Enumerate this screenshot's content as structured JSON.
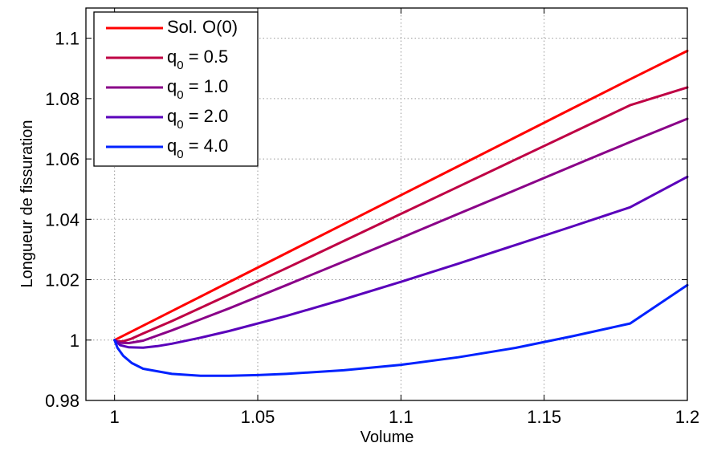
{
  "chart_data": {
    "type": "line",
    "title": "",
    "xlabel": "Volume",
    "ylabel": "Longueur de fissuration",
    "xlim": [
      0.99,
      1.2
    ],
    "ylim": [
      0.98,
      1.11
    ],
    "grid": true,
    "grid_style": "dotted",
    "legend_position": "top-left",
    "x_ticks": [
      1,
      1.05,
      1.1,
      1.15,
      1.2
    ],
    "x_tick_labels": [
      "1",
      "1.05",
      "1.1",
      "1.15",
      "1.2"
    ],
    "y_ticks": [
      0.98,
      1.0,
      1.02,
      1.04,
      1.06,
      1.08,
      1.1
    ],
    "y_tick_labels": [
      "0.98",
      "1",
      "1.02",
      "1.04",
      "1.06",
      "1.08",
      "1.1"
    ],
    "series": [
      {
        "name": "Sol. O(0)",
        "legend_main": "Sol. O(0)",
        "legend_sub": "",
        "legend_tail": "",
        "color": "#ff0000",
        "x": [
          1.0,
          1.02,
          1.04,
          1.06,
          1.08,
          1.1,
          1.12,
          1.14,
          1.16,
          1.18,
          1.2
        ],
        "y": [
          1.0,
          1.0096,
          1.0192,
          1.0288,
          1.0384,
          1.048,
          1.0576,
          1.0672,
          1.0768,
          1.0864,
          1.0958
        ]
      },
      {
        "name": "q0 = 0.5",
        "legend_main": "q",
        "legend_sub": "0",
        "legend_tail": " = 0.5",
        "color": "#bf0044",
        "x": [
          1.0,
          1.001,
          1.003,
          1.006,
          1.01,
          1.02,
          1.04,
          1.06,
          1.08,
          1.1,
          1.12,
          1.14,
          1.16,
          1.18,
          1.2
        ],
        "y": [
          1.0,
          0.9995,
          0.9996,
          1.0005,
          1.0022,
          1.0063,
          1.015,
          1.0238,
          1.0328,
          1.0418,
          1.0508,
          1.0598,
          1.0688,
          1.0778,
          1.0837
        ]
      },
      {
        "name": "q0 = 1.0",
        "legend_main": "q",
        "legend_sub": "0",
        "legend_tail": " = 1.0",
        "color": "#8a0088",
        "x": [
          1.0,
          1.002,
          1.005,
          1.01,
          1.02,
          1.04,
          1.06,
          1.08,
          1.1,
          1.12,
          1.14,
          1.16,
          1.18,
          1.2
        ],
        "y": [
          1.0,
          0.9991,
          0.999,
          0.9998,
          1.0032,
          1.0105,
          1.0182,
          1.026,
          1.0338,
          1.0418,
          1.0497,
          1.0577,
          1.0656,
          1.0733
        ]
      },
      {
        "name": "q0 = 2.0",
        "legend_main": "q",
        "legend_sub": "0",
        "legend_tail": " = 2.0",
        "color": "#5a00bb",
        "x": [
          1.0,
          1.002,
          1.005,
          1.01,
          1.015,
          1.02,
          1.03,
          1.04,
          1.06,
          1.08,
          1.1,
          1.12,
          1.14,
          1.16,
          1.18,
          1.2
        ],
        "y": [
          1.0,
          0.9983,
          0.9976,
          0.9975,
          0.998,
          0.9988,
          1.0008,
          1.003,
          1.008,
          1.0135,
          1.0193,
          1.0253,
          1.0315,
          1.0377,
          1.044,
          1.0541
        ]
      },
      {
        "name": "q0 = 4.0",
        "legend_main": "q",
        "legend_sub": "0",
        "legend_tail": " = 4.0",
        "color": "#0022ff",
        "x": [
          1.0,
          1.001,
          1.003,
          1.006,
          1.01,
          1.02,
          1.03,
          1.04,
          1.05,
          1.06,
          1.08,
          1.1,
          1.12,
          1.14,
          1.16,
          1.18,
          1.2
        ],
        "y": [
          1.0,
          0.9975,
          0.9948,
          0.9924,
          0.9905,
          0.9888,
          0.9882,
          0.9882,
          0.9884,
          0.9888,
          0.99,
          0.9918,
          0.9943,
          0.9974,
          1.0013,
          1.0055,
          1.0182
        ]
      }
    ]
  }
}
